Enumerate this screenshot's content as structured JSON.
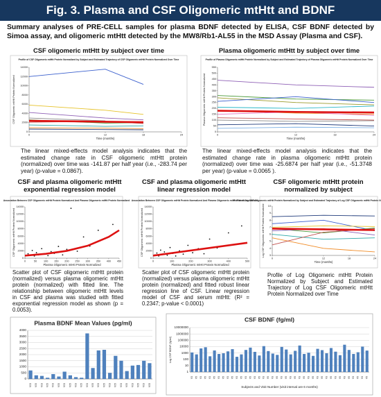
{
  "header": {
    "title": "Fig. 3.  Plasma and CSF Oligomeric mtHtt and BDNF",
    "summary": "Summary analyses of PRE-CELL samples for plasma BDNF detected by ELISA, CSF BDNF detected by Simoa assay, and oligomeric mtHtt detected by the MW8/Rb1-AL55 in the MSD Assay (Plasma and CSF)."
  },
  "panels": [
    {
      "title": "CSF oligomeric mtHtt by subject over time",
      "caption": "The linear mixed-effects model analysis indicates that the estimated change rate in CSF oligomeric mtHtt protein (normalized) over time was -141.87 per half year (i.e., -283.74 per year) (p-value = 0.0867)."
    },
    {
      "title": "Plasma oligomeric mtHtt by subject over time",
      "caption": "The linear mixed-effects model analysis indicates that the estimated change rate in plasma oligomeric mtHtt protein (normalized) over time was -25.6874 per half year (i.e., -51.3748 per year) (p-value = 0.0065 )."
    },
    {
      "title": "CSF and plasma oligomeric mtHtt exponential regression model",
      "caption": "Scatter plot of CSF oligomeric mtHtt protein (normalized) versus plasma oligomeric mtHtt protein (normalized) with fitted line. The relationship between oligomeric mtHtt levels in CSF and plasma was studied with fitted exponential regression model as shown (p = 0.0053)."
    },
    {
      "title": "CSF and plasma oligomeric mtHtt linear regression model",
      "caption": "Scatter plot of CSF oligomeric mtHtt protein (normalized) versus plasma oligomeric mtHtt protein (normalized) and fitted robust linear regression line of CSF. Linear regression model of CSF and serum mtHtt: (R² = 0.2347; p-value < 0.0001)"
    },
    {
      "title": "CSF oligomeric mtHtt protein normalized by subject",
      "caption": "Profile of Log Oligomeric mtHtt Protein Normalized by Subject and Estimated Trajectory of Log CSF Oligomeric mtHtt Protein Normalized over Time"
    }
  ],
  "chart_data": [
    {
      "type": "line",
      "title": "Profile of CSF Oligomeric mtHtt Protein Normalized by Subject and Estimated Trajectory of CSF Oligomeric mtHtt Protein Normalized Over Time",
      "xlabel": "Time (months)",
      "ylabel": "CSF Oligomeric mtHtt Protein Normalized",
      "x": [
        0,
        12,
        18
      ],
      "xlim": [
        0,
        24
      ],
      "xticks": [
        0,
        12,
        18,
        24
      ],
      "ylim": [
        0,
        14000
      ],
      "yticks": [
        0,
        2000,
        4000,
        6000,
        8000,
        10000,
        12000,
        14000
      ],
      "series": [
        {
          "color": "#3a5fcd",
          "values": [
            12000,
            13600,
            10300
          ]
        },
        {
          "color": "#e6c229",
          "values": [
            5800,
            4700,
            3800
          ]
        },
        {
          "color": "#8e5fb5",
          "values": [
            4200,
            3000,
            2600
          ]
        },
        {
          "color": "#4c9a3a",
          "values": [
            2600,
            1900,
            2000
          ]
        },
        {
          "color": "#c0504d",
          "values": [
            2100,
            2300,
            1800
          ]
        },
        {
          "color": "#2aa7a7",
          "values": [
            1500,
            1200,
            1300
          ]
        },
        {
          "color": "#f08a24",
          "values": [
            900,
            800,
            700
          ]
        },
        {
          "color": "#888888",
          "values": [
            3000,
            2400,
            null
          ]
        },
        {
          "color": "#1f3a7a",
          "values": [
            600,
            500,
            450
          ]
        }
      ],
      "estimate": {
        "color": "#dd1111",
        "values": [
          2400,
          2200,
          2100
        ]
      }
    },
    {
      "type": "line",
      "title": "Profile of Plasma Oligomeric mtHtt Protein Normalized by Subject and Estimated Trajectory of Plasma Oligomeric mtHtt Protein Normalized Over Time",
      "xlabel": "Time (months)",
      "ylabel": "Plasma Oligomeric mtHtt Protein Normalized",
      "x": [
        0,
        12,
        24
      ],
      "xlim": [
        0,
        24
      ],
      "xticks": [
        0,
        12,
        18,
        24
      ],
      "ylim": [
        0,
        550
      ],
      "yticks": [
        0,
        50,
        100,
        150,
        200,
        250,
        300,
        350,
        400,
        450,
        500,
        550
      ],
      "series": [
        {
          "color": "#8e5fb5",
          "values": [
            440,
            400,
            380
          ]
        },
        {
          "color": "#4c9a3a",
          "values": [
            310,
            280,
            270
          ]
        },
        {
          "color": "#9a9a2a",
          "values": [
            290,
            250,
            230
          ]
        },
        {
          "color": "#3a5fcd",
          "values": [
            260,
            300,
            250
          ]
        },
        {
          "color": "#2ab7c7",
          "values": [
            210,
            200,
            220
          ]
        },
        {
          "color": "#f08a24",
          "values": [
            180,
            160,
            150
          ]
        },
        {
          "color": "#e377c2",
          "values": [
            150,
            170,
            140
          ]
        },
        {
          "color": "#c0504d",
          "values": [
            120,
            110,
            100
          ]
        },
        {
          "color": "#888888",
          "values": [
            100,
            90,
            95
          ]
        },
        {
          "color": "#1f3a7a",
          "values": [
            60,
            70,
            50
          ]
        },
        {
          "color": "#7fb2e5",
          "values": [
            30,
            40,
            35
          ]
        }
      ],
      "estimate": {
        "color": "#dd1111",
        "values": [
          180,
          170,
          165
        ]
      }
    },
    {
      "type": "scatter",
      "title": "Association Between CSF Oligomeric mtHtt Protein Normalized And Plasma Oligomeric mtHtt Protein Normalized",
      "xlabel": "Plasma Oligomeric mtHtt Protein Normalized",
      "ylabel": "CSF Oligomeric mtHtt Protein Normalized",
      "xlim": [
        0,
        450
      ],
      "xticks": [
        0,
        50,
        100,
        150,
        200,
        250,
        300,
        350,
        400,
        450
      ],
      "ylim": [
        0,
        14000
      ],
      "yticks": [
        0,
        2000,
        4000,
        6000,
        8000,
        10000,
        12000,
        14000
      ],
      "color": "#111111",
      "x": [
        15,
        25,
        35,
        45,
        55,
        65,
        80,
        95,
        110,
        125,
        140,
        160,
        180,
        200,
        220,
        250,
        280,
        310,
        350,
        420
      ],
      "y": [
        1200,
        800,
        2100,
        600,
        1500,
        900,
        2600,
        1100,
        700,
        1800,
        1300,
        3200,
        900,
        2400,
        13600,
        1900,
        5800,
        3300,
        7600,
        9200
      ],
      "fit": {
        "color": "#dd1111",
        "x": [
          0,
          100,
          200,
          300,
          400,
          450
        ],
        "y": [
          700,
          1200,
          2000,
          3400,
          5800,
          7600
        ]
      }
    },
    {
      "type": "scatter",
      "title": "Association Between CSF Oligomeric mtHtt Protein Normalized And Plasma Oligomeric mtHtt Protein Normalized",
      "xlabel": "Plasma Oligomeric mtHtt Protein Normalized",
      "ylabel": "CSF Oligomeric mtHtt Protein Normalized",
      "xlim": [
        0,
        500
      ],
      "xticks": [
        0,
        100,
        200,
        300,
        400,
        500
      ],
      "ylim": [
        0,
        14000
      ],
      "yticks": [
        0,
        2000,
        4000,
        6000,
        8000,
        10000,
        12000,
        14000
      ],
      "color": "#111111",
      "x": [
        10,
        20,
        30,
        40,
        50,
        60,
        75,
        90,
        105,
        120,
        140,
        160,
        185,
        210,
        240,
        270,
        300,
        340,
        400,
        470
      ],
      "y": [
        900,
        1400,
        600,
        2200,
        1000,
        1700,
        800,
        2900,
        1300,
        600,
        2000,
        1100,
        3500,
        1500,
        2600,
        1200,
        5200,
        2800,
        6900,
        8800
      ],
      "fit": {
        "color": "#dd1111",
        "x": [
          0,
          500
        ],
        "y": [
          700,
          4200
        ]
      }
    },
    {
      "type": "line",
      "title": "Profile of Log CSF Oligomeric mtHtt Protein Normalized by Subject and Estimated Trajectory of Log CSF Oligomeric mtHtt Protein Normalized Over Time",
      "xlabel": "Time (months)",
      "ylabel": "Log CSF Oligomeric mtHtt Protein Normalized",
      "x": [
        0,
        12,
        24
      ],
      "xlim": [
        0,
        24
      ],
      "xticks": [
        0,
        12,
        18,
        24
      ],
      "ylim": [
        3,
        10
      ],
      "yticks": [
        3,
        4,
        5,
        6,
        7,
        8,
        9,
        10
      ],
      "series": [
        {
          "color": "#3a5fcd",
          "values": [
            7.5,
            8,
            6.5
          ]
        },
        {
          "color": "#e6c229",
          "values": [
            7,
            7.2,
            7.1
          ]
        },
        {
          "color": "#4c9a3a",
          "values": [
            6.8,
            6.2,
            6.9
          ]
        },
        {
          "color": "#8e5fb5",
          "values": [
            6.5,
            6.8,
            5.9
          ]
        },
        {
          "color": "#2aa7a7",
          "values": [
            6,
            5.3,
            5.5
          ]
        },
        {
          "color": "#f08a24",
          "values": [
            5.5,
            4,
            3.5
          ]
        },
        {
          "color": "#1f3a7a",
          "values": [
            8.5,
            8.7,
            8.6
          ]
        },
        {
          "color": "#c0504d",
          "values": [
            4.5,
            6.3,
            6.8
          ]
        }
      ],
      "estimate": {
        "color": "#dd1111",
        "values": [
          6.8,
          6.7,
          6.6
        ]
      }
    },
    {
      "type": "bar",
      "title": "Plasma BDNF Mean Values (pg/ml)",
      "color": "#4f81bd",
      "grid": true,
      "ylim": [
        0,
        4000
      ],
      "yticks": [
        0,
        500,
        1000,
        1500,
        2000,
        2500,
        3000,
        3500,
        4000
      ],
      "categories": [
        "V03",
        "V05",
        "V03",
        "V05",
        "V03",
        "V05",
        "V03",
        "V05",
        "V03",
        "V05",
        "V03",
        "V05",
        "V03",
        "V05",
        "V03",
        "V05",
        "V03",
        "V05",
        "V03",
        "V05",
        "V03",
        "V05"
      ],
      "values": [
        700,
        300,
        250,
        100,
        400,
        200,
        600,
        300,
        150,
        100,
        3750,
        900,
        2350,
        2400,
        500,
        1900,
        1500,
        650,
        1100,
        1150,
        1500,
        1300
      ]
    },
    {
      "type": "bar",
      "title": "CSF BDNF (fg/ml)",
      "color": "#4f81bd",
      "grid": true,
      "log_scale": true,
      "ylabel": "Log CSF BDNF (fg/ml)",
      "xlabel": "Subjects and Visit Number (visit interval are 6 months)",
      "ylim": [
        1,
        10000000
      ],
      "yticks": [
        1,
        10,
        100,
        1000,
        10000,
        100000,
        1000000,
        10000000
      ],
      "categories": [
        "V3",
        "V5",
        "V3",
        "V5",
        "V3",
        "V5",
        "V3",
        "V5",
        "V3",
        "V5",
        "V3",
        "V5",
        "V3",
        "V5",
        "V3",
        "V5",
        "V3",
        "V5",
        "V3",
        "V5",
        "V3",
        "V5",
        "V3",
        "V5",
        "V3",
        "V5",
        "V3",
        "V5",
        "V3",
        "V5",
        "V3",
        "V5",
        "V3",
        "V5",
        "V3",
        "V5",
        "V3",
        "V5",
        "V3",
        "V5"
      ],
      "values": [
        1200,
        600,
        5200,
        8000,
        300,
        2500,
        700,
        900,
        1800,
        4000,
        250,
        600,
        3000,
        7000,
        1500,
        400,
        12000,
        2000,
        800,
        500,
        9000,
        3500,
        600,
        2200,
        15000,
        700,
        1100,
        350,
        4500,
        2800,
        900,
        6000,
        1600,
        450,
        20000,
        3000,
        700,
        1300,
        10000,
        2400
      ]
    }
  ]
}
